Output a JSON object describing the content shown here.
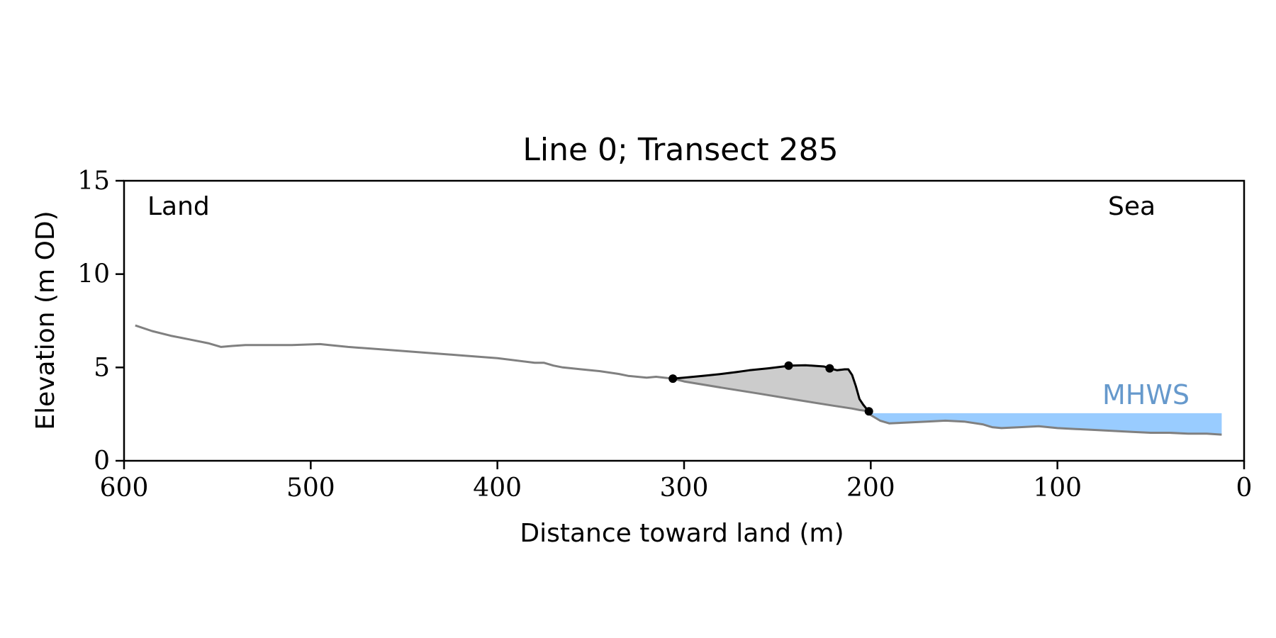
{
  "chart_data": {
    "type": "line",
    "title": "Line 0; Transect 285",
    "xlabel": "Distance toward land (m)",
    "ylabel": "Elevation (m OD)",
    "xlim": [
      600,
      0
    ],
    "ylim": [
      0,
      15
    ],
    "x_ticks": [
      600,
      500,
      400,
      300,
      200,
      100,
      0
    ],
    "x_tick_labels": [
      "600",
      "500",
      "400",
      "300",
      "200",
      "100",
      "0"
    ],
    "y_ticks": [
      0,
      5,
      10,
      15
    ],
    "y_tick_labels": [
      "0",
      "5",
      "10",
      "15"
    ],
    "grid": false,
    "annotations": {
      "left": "Land",
      "right": "Sea",
      "mhws_label": "MHWS"
    },
    "mhws": {
      "level": 2.55,
      "x_from": 200,
      "x_to": 12
    },
    "colors": {
      "profile": "#808080",
      "dune": "#000000",
      "dune_fill": "#cccccc",
      "mhws_fill": "#99ccff",
      "mhws_text": "#6699cc"
    },
    "profile": {
      "x": [
        594,
        585,
        575,
        565,
        555,
        548,
        542,
        535,
        525,
        510,
        495,
        490,
        480,
        460,
        440,
        420,
        400,
        380,
        375,
        370,
        365,
        355,
        345,
        335,
        330,
        320,
        315,
        306,
        300,
        280,
        260,
        240,
        220,
        210,
        206,
        203,
        200,
        195,
        190,
        180,
        170,
        160,
        150,
        140,
        135,
        130,
        120,
        110,
        100,
        90,
        80,
        70,
        60,
        50,
        40,
        30,
        20,
        12
      ],
      "y": [
        7.25,
        6.95,
        6.7,
        6.5,
        6.3,
        6.1,
        6.15,
        6.2,
        6.2,
        6.2,
        6.25,
        6.2,
        6.1,
        5.95,
        5.8,
        5.65,
        5.5,
        5.25,
        5.25,
        5.1,
        5.0,
        4.9,
        4.8,
        4.65,
        4.55,
        4.45,
        4.5,
        4.4,
        4.25,
        3.92,
        3.6,
        3.27,
        2.95,
        2.8,
        2.72,
        2.68,
        2.45,
        2.15,
        2.0,
        2.05,
        2.1,
        2.15,
        2.1,
        1.95,
        1.8,
        1.75,
        1.8,
        1.85,
        1.75,
        1.7,
        1.65,
        1.6,
        1.55,
        1.5,
        1.5,
        1.45,
        1.45,
        1.4
      ]
    },
    "dune": {
      "x": [
        306,
        300,
        290,
        280,
        272,
        265,
        255,
        243,
        235,
        225,
        222,
        218,
        214,
        212,
        210,
        208,
        206,
        204,
        202,
        200
      ],
      "y": [
        4.4,
        4.45,
        4.55,
        4.65,
        4.75,
        4.85,
        4.95,
        5.1,
        5.12,
        5.05,
        4.95,
        4.85,
        4.9,
        4.9,
        4.6,
        4.0,
        3.3,
        3.0,
        2.75,
        2.6
      ]
    },
    "markers": {
      "x": [
        306,
        244,
        222,
        201
      ],
      "y": [
        4.4,
        5.1,
        4.95,
        2.65
      ]
    }
  }
}
